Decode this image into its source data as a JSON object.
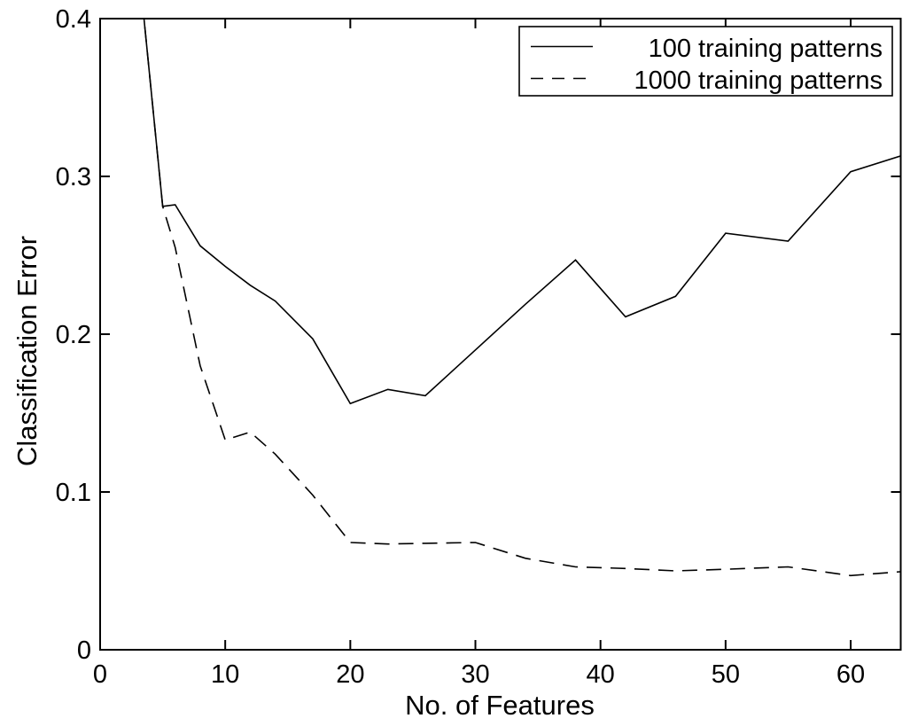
{
  "figure": {
    "background_color": "#ffffff",
    "axis_color": "#000000",
    "line_color": "#000000"
  },
  "chart_data": {
    "type": "line",
    "title": "",
    "xlabel": "No. of Features",
    "ylabel": "Classification Error",
    "xlim": [
      0,
      64
    ],
    "ylim": [
      0,
      0.4
    ],
    "xticks": [
      0,
      10,
      20,
      30,
      40,
      50,
      60
    ],
    "xtick_labels": [
      "0",
      "10",
      "20",
      "30",
      "40",
      "50",
      "60"
    ],
    "yticks": [
      0,
      0.1,
      0.2,
      0.3,
      0.4
    ],
    "ytick_labels": [
      "0",
      "0.1",
      "0.2",
      "0.3",
      "0.4"
    ],
    "grid": false,
    "legend_position": "top-right",
    "x": [
      3,
      5,
      6,
      8,
      10,
      12,
      14,
      17,
      20,
      23,
      26,
      30,
      34,
      38,
      42,
      46,
      50,
      55,
      60,
      64
    ],
    "series": [
      {
        "name": "100 training patterns",
        "style": "solid",
        "color": "#000000",
        "values": [
          0.44,
          0.281,
          0.282,
          0.256,
          0.243,
          0.231,
          0.221,
          0.197,
          0.156,
          0.165,
          0.161,
          0.19,
          0.219,
          0.247,
          0.211,
          0.224,
          0.264,
          0.259,
          0.303,
          0.313
        ]
      },
      {
        "name": "1000 training patterns",
        "style": "dashed",
        "color": "#000000",
        "values": [
          0.44,
          0.281,
          0.255,
          0.18,
          0.133,
          0.138,
          0.124,
          0.098,
          0.068,
          0.067,
          0.0675,
          0.068,
          0.058,
          0.0525,
          0.0515,
          0.05,
          0.051,
          0.0525,
          0.047,
          0.0495
        ]
      }
    ]
  }
}
